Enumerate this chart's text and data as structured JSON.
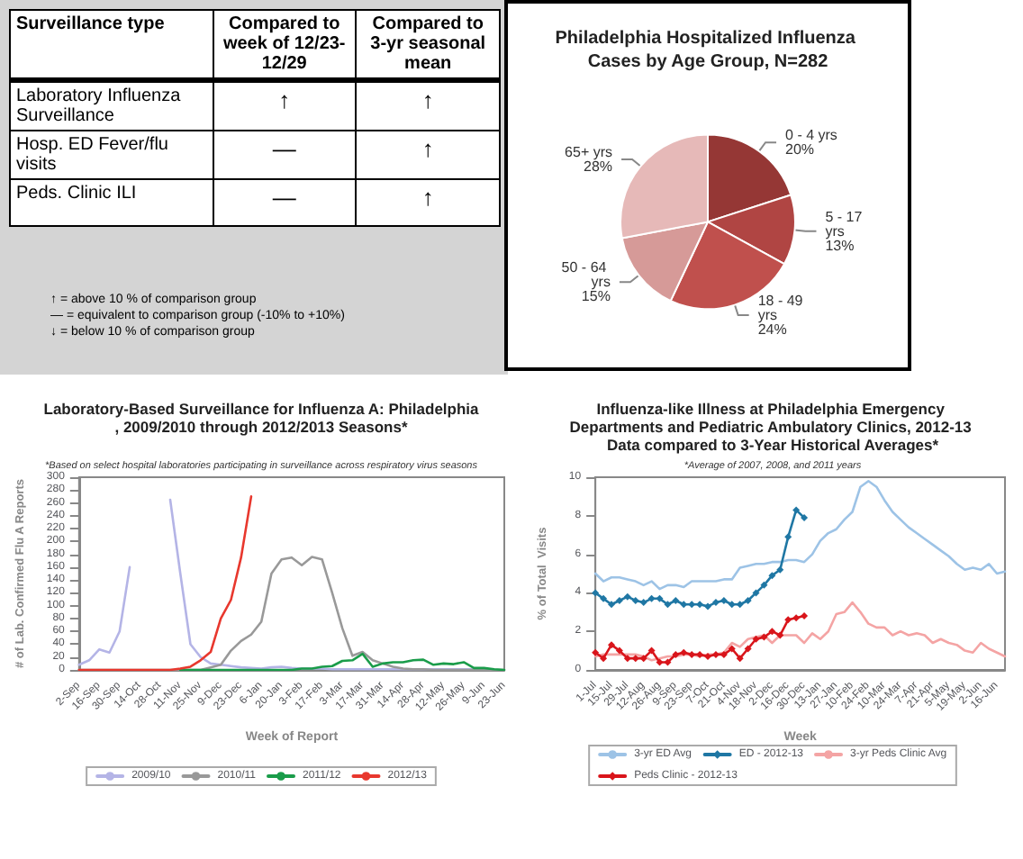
{
  "chart_data": [
    {
      "type": "other",
      "annotations": [
        "Surveillance type",
        "Compared to week of 12/23- 12/29",
        "Compared to 3-yr seasonal mean",
        "Laboratory Influenza Surveillance",
        "↑",
        "↑",
        "Hosp. ED Fever/flu visits",
        "—",
        "↑",
        "Peds. Clinic ILI",
        "—",
        "↑",
        "↑  = above 10 % of comparison group",
        "— = equivalent to comparison group (-10% to +10%)",
        "↓  = below 10 % of comparison group"
      ]
    },
    {
      "type": "pie",
      "title": "Philadelphia Hospitalized Influenza Cases by Age Group, N=282",
      "categories": [
        "0 - 4 yrs",
        "5 - 17 yrs",
        "18 - 49 yrs",
        "50 - 64 yrs",
        "65+ yrs"
      ],
      "values": [
        20,
        13,
        24,
        15,
        28
      ],
      "value_labels": [
        "20%",
        "13%",
        "24%",
        "15%",
        "28%"
      ],
      "colors": [
        "#953735",
        "#b04543",
        "#c0504d",
        "#d69a98",
        "#e6b9b8"
      ]
    },
    {
      "type": "line",
      "title": "Laboratory-Based Surveillance for Influenza A: Philadelphia, 2009/2010 through 2012/2013 Seasons*",
      "subtitle": "*Based on select hospital laboratories participating in surveillance across respiratory virus seasons",
      "xlabel": "Week of Report",
      "ylabel": "# of Lab. Confirmed Flu A Reports",
      "categories": [
        "2-Sep",
        null,
        "16-Sep",
        null,
        "30-Sep",
        null,
        "14-Oct",
        null,
        "28-Oct",
        null,
        "11-Nov",
        null,
        "25-Nov",
        null,
        "9-Dec",
        null,
        "23-Dec",
        null,
        "6-Jan",
        null,
        "20-Jan",
        null,
        "3-Feb",
        null,
        "17-Feb",
        null,
        "3-Mar",
        null,
        "17-Mar",
        null,
        "31-Mar",
        null,
        "14-Apr",
        null,
        "28-Apr",
        null,
        "12-May",
        null,
        "26-May",
        null,
        "9-Jun",
        null,
        "23-Jun"
      ],
      "series": [
        {
          "name": "2009/10",
          "color": "#b4b4e6",
          "values": [
            8,
            15,
            32,
            27,
            60,
            160,
            null,
            null,
            null,
            265,
            150,
            40,
            20,
            10,
            8,
            6,
            4,
            3,
            2,
            4,
            5,
            3,
            2,
            2,
            2,
            1,
            1,
            1,
            1,
            1,
            1,
            1,
            1,
            1,
            1,
            1,
            1,
            1,
            1,
            1,
            null,
            null,
            null
          ]
        },
        {
          "name": "2010/11",
          "color": "#999999",
          "values": [
            0,
            0,
            0,
            0,
            0,
            0,
            0,
            0,
            0,
            0,
            0,
            0,
            0,
            4,
            8,
            30,
            45,
            55,
            75,
            150,
            172,
            175,
            163,
            176,
            172,
            120,
            65,
            22,
            28,
            15,
            10,
            5,
            2,
            1,
            1,
            0,
            0,
            0,
            0,
            0,
            0,
            0,
            0
          ]
        },
        {
          "name": "2011/12",
          "color": "#1a9c4a",
          "values": [
            null,
            null,
            null,
            null,
            null,
            null,
            null,
            null,
            null,
            null,
            0,
            0,
            0,
            0,
            0,
            0,
            0,
            0,
            0,
            0,
            0,
            0,
            2,
            2,
            5,
            6,
            14,
            15,
            25,
            5,
            10,
            12,
            12,
            15,
            16,
            8,
            10,
            9,
            12,
            3,
            3,
            1,
            0
          ]
        },
        {
          "name": "2012/13",
          "color": "#e8382e",
          "values": [
            0,
            0,
            0,
            0,
            0,
            0,
            0,
            0,
            0,
            0,
            2,
            5,
            15,
            28,
            80,
            109,
            175,
            270,
            null,
            null,
            null,
            null,
            null,
            null,
            null,
            null,
            null,
            null,
            null,
            null,
            null,
            null,
            null,
            null,
            null,
            null,
            null,
            null,
            null,
            null,
            null,
            null,
            null
          ]
        }
      ],
      "ylim": [
        0,
        300
      ],
      "yticks": [
        0,
        20,
        40,
        60,
        80,
        100,
        120,
        140,
        160,
        180,
        200,
        220,
        240,
        260,
        280,
        300
      ],
      "grid": false,
      "legend": "bottom",
      "marker": "none"
    },
    {
      "type": "line",
      "title": "Influenza-like Illness at Philadelphia Emergency Departments and Pediatric Ambulatory Clinics, 2012-13 Data compared to 3-Year Historical Averages*",
      "subtitle": "*Average of 2007, 2008, and 2011 years",
      "xlabel": "Week",
      "ylabel": "% of Total  Visits",
      "categories": [
        "1-Jul",
        null,
        "15-Jul",
        null,
        "29-Jul",
        null,
        "12-Aug",
        null,
        "26-Aug",
        null,
        "9-Sep",
        null,
        "23-Sep",
        null,
        "7-Oct",
        null,
        "21-Oct",
        null,
        "4-Nov",
        null,
        "18-Nov",
        null,
        "2-Dec",
        null,
        "16-Dec",
        null,
        "30-Dec",
        null,
        "13-Jan",
        null,
        "27-Jan",
        null,
        "10-Feb",
        null,
        "24-Feb",
        null,
        "10-Mar",
        null,
        "24-Mar",
        null,
        "7-Apr",
        null,
        "21-Apr",
        null,
        "5-May",
        null,
        "19-May",
        null,
        "2-Jun",
        null,
        "16-Jun",
        null
      ],
      "series": [
        {
          "name": "3-yr ED Avg",
          "color": "#9dc3e6",
          "marker": "none",
          "values": [
            5.0,
            4.6,
            4.8,
            4.8,
            4.7,
            4.6,
            4.4,
            4.6,
            4.2,
            4.4,
            4.4,
            4.3,
            4.6,
            4.6,
            4.6,
            4.6,
            4.7,
            4.7,
            5.3,
            5.4,
            5.5,
            5.5,
            5.6,
            5.6,
            5.7,
            5.7,
            5.6,
            6.0,
            6.7,
            7.1,
            7.3,
            7.8,
            8.2,
            9.5,
            9.8,
            9.5,
            8.8,
            8.2,
            7.8,
            7.4,
            7.1,
            6.8,
            6.5,
            6.2,
            5.9,
            5.5,
            5.2,
            5.3,
            5.2,
            5.5,
            5.0,
            5.1
          ]
        },
        {
          "name": "ED - 2012-13",
          "color": "#1f77a4",
          "marker": "diamond",
          "values": [
            4.0,
            3.7,
            3.4,
            3.6,
            3.8,
            3.6,
            3.5,
            3.7,
            3.7,
            3.4,
            3.6,
            3.4,
            3.4,
            3.4,
            3.3,
            3.5,
            3.6,
            3.4,
            3.4,
            3.6,
            4.0,
            4.4,
            4.9,
            5.2,
            6.9,
            8.3,
            7.9,
            null,
            null,
            null,
            null,
            null,
            null,
            null,
            null,
            null,
            null,
            null,
            null,
            null,
            null,
            null,
            null,
            null,
            null,
            null,
            null,
            null,
            null,
            null,
            null,
            null
          ]
        },
        {
          "name": "3-yr Peds Clinic Avg",
          "color": "#f4a4a4",
          "marker": "none",
          "values": [
            0.7,
            0.8,
            0.8,
            0.8,
            0.8,
            0.8,
            0.7,
            0.5,
            0.6,
            0.7,
            0.7,
            0.8,
            0.8,
            0.7,
            0.8,
            0.8,
            0.9,
            1.4,
            1.2,
            1.6,
            1.7,
            1.8,
            1.4,
            1.8,
            1.8,
            1.8,
            1.4,
            1.9,
            1.6,
            2.0,
            2.9,
            3.0,
            3.5,
            3.0,
            2.4,
            2.2,
            2.2,
            1.8,
            2.0,
            1.8,
            1.9,
            1.8,
            1.4,
            1.6,
            1.4,
            1.3,
            1.0,
            0.9,
            1.4,
            1.1,
            0.9,
            0.7
          ]
        },
        {
          "name": "Peds Clinic - 2012-13",
          "color": "#d9151b",
          "marker": "diamond",
          "values": [
            0.9,
            0.6,
            1.3,
            1.0,
            0.6,
            0.6,
            0.6,
            1.0,
            0.4,
            0.4,
            0.8,
            0.9,
            0.8,
            0.8,
            0.7,
            0.8,
            0.8,
            1.1,
            0.6,
            1.1,
            1.6,
            1.7,
            2.0,
            1.8,
            2.6,
            2.7,
            2.8,
            null,
            null,
            null,
            null,
            null,
            null,
            null,
            null,
            null,
            null,
            null,
            null,
            null,
            null,
            null,
            null,
            null,
            null,
            null,
            null,
            null,
            null,
            null,
            null,
            null
          ]
        }
      ],
      "ylim": [
        0,
        10
      ],
      "yticks": [
        0,
        2,
        4,
        6,
        8,
        10
      ],
      "grid": false,
      "legend": "bottom"
    }
  ]
}
